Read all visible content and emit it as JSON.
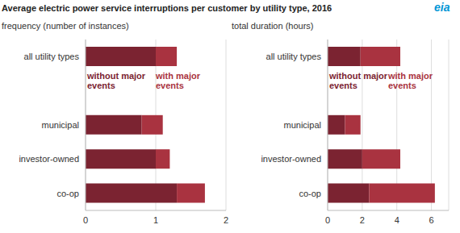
{
  "title": "Average electric power service interruptions per customer by utility type, 2016",
  "logo": "eia",
  "chart_data": [
    {
      "type": "bar",
      "orientation": "horizontal",
      "stacked": true,
      "grid": true,
      "title": "frequency (number of instances)",
      "categories": [
        "all utility types",
        null,
        "municipal",
        "investor-owned",
        "co-op"
      ],
      "series": [
        {
          "name": "without major events",
          "color": "#7b2331",
          "values": [
            1.0,
            null,
            0.8,
            1.0,
            1.3
          ]
        },
        {
          "name": "with major events",
          "color": "#a93340",
          "values": [
            0.3,
            null,
            0.3,
            0.2,
            0.4
          ]
        }
      ],
      "xlim": [
        0,
        2
      ],
      "xticks": [
        0,
        1,
        2
      ]
    },
    {
      "type": "bar",
      "orientation": "horizontal",
      "stacked": true,
      "grid": true,
      "title": "total duration (hours)",
      "categories": [
        "all utility types",
        null,
        "municipal",
        "investor-owned",
        "co-op"
      ],
      "series": [
        {
          "name": "without major events",
          "color": "#7b2331",
          "values": [
            1.9,
            null,
            1.0,
            2.0,
            2.4
          ]
        },
        {
          "name": "with major events",
          "color": "#a93340",
          "values": [
            2.3,
            null,
            0.9,
            2.2,
            3.8
          ]
        }
      ],
      "xlim": [
        0,
        7
      ],
      "xticks": [
        0,
        2,
        4,
        6
      ]
    }
  ]
}
